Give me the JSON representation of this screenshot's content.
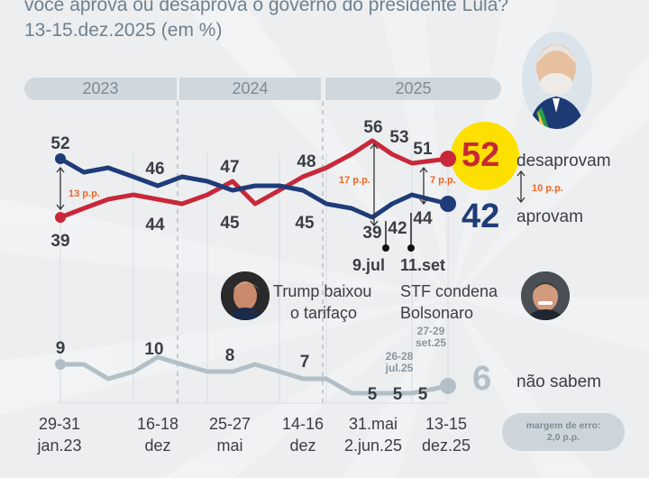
{
  "header": {
    "question_line": "você aprova ou desaprova o governo do presidente Lula?",
    "date_line": "13-15.dez.2025 (em %)"
  },
  "years": [
    "2023",
    "2024",
    "2025"
  ],
  "colors": {
    "disapprove": "#c8283a",
    "approve": "#1f3c78",
    "dont_know": "#b2bfc7",
    "gap": "#f26522",
    "highlight": "#fde000",
    "background": "#eceef0"
  },
  "chart_data": {
    "type": "line",
    "title": "você aprova ou desaprova o governo do presidente Lula?",
    "subtitle": "13-15.dez.2025 (em %)",
    "xlabel": "",
    "ylabel": "%",
    "x_ticks": [
      {
        "index": 0,
        "line1": "29-31",
        "line2": "jan.23"
      },
      {
        "index": 3,
        "line1": "16-18",
        "line2": "dez"
      },
      {
        "index": 6,
        "line1": "25-27",
        "line2": "mai"
      },
      {
        "index": 9,
        "line1": "14-16",
        "line2": "dez"
      },
      {
        "index": 11,
        "line1": "31.mai",
        "line2": "2.jun.25"
      },
      {
        "index": 15,
        "line1": "13-15",
        "line2": "dez.25"
      }
    ],
    "series": [
      {
        "name": "desaprovam",
        "key": "disapprove",
        "values": [
          39,
          41,
          43,
          44,
          43,
          42,
          44,
          47,
          42,
          45,
          48,
          50,
          53,
          56,
          53,
          51,
          52
        ],
        "labels": {
          "0": "39",
          "3": "44",
          "7": "47",
          "10": "48",
          "13": "56",
          "14": "53",
          "15": "51"
        },
        "final_label": "52"
      },
      {
        "name": "aprovam",
        "key": "approve",
        "values": [
          52,
          49,
          50,
          48,
          46,
          48,
          47,
          45,
          46,
          46,
          45,
          42,
          41,
          39,
          42,
          44,
          42
        ],
        "labels": {
          "0": "52",
          "4": "46",
          "7": "45",
          "10": "45",
          "13": "39",
          "14": "42",
          "15": "44"
        },
        "final_label": "42"
      },
      {
        "name": "não sabem",
        "key": "dont_know",
        "values": [
          9,
          9,
          7,
          8,
          10,
          9,
          8,
          8,
          9,
          8,
          7,
          7,
          5,
          5,
          5,
          5,
          6
        ],
        "labels": {
          "0": "9",
          "4": "10",
          "7": "8",
          "10": "7",
          "13": "5",
          "14": "5",
          "15": "5"
        },
        "final_label": "6"
      }
    ],
    "gaps": [
      {
        "index": 0,
        "label": "13 p.p."
      },
      {
        "index": 13,
        "label": "17 p.p."
      },
      {
        "index": 15,
        "label": "7 p.p."
      },
      {
        "index": 16,
        "label": "10 p.p."
      }
    ],
    "events": [
      {
        "index": 14,
        "date": "9.jul",
        "line1": "Trump baixou",
        "line2": "o tarifaço",
        "person": "trump"
      },
      {
        "index": 15,
        "date": "11.set",
        "line1": "STF condena",
        "line2": "Bolsonaro",
        "person": "bolsonaro"
      }
    ],
    "survey_date_notes": [
      {
        "line1": "26-28",
        "line2": "jul.25"
      },
      {
        "line1": "27-29",
        "line2": "set.25"
      }
    ],
    "ylim": [
      0,
      60
    ],
    "grid": false,
    "legend": "right"
  },
  "legend": {
    "disapprove_word": "desaprovam",
    "approve_word": "aprovam",
    "dont_know_word": "não sabem"
  },
  "footer": {
    "margin_line1": "margem de erro:",
    "margin_line2": "2,0 p.p."
  }
}
